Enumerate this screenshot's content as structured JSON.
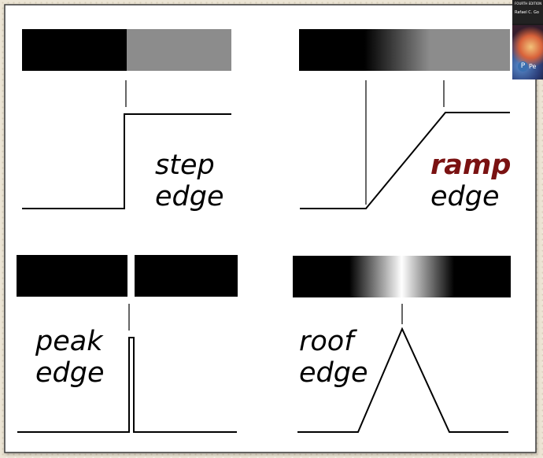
{
  "panels": {
    "step": {
      "label_line1": "step",
      "label_line2": "edge"
    },
    "ramp": {
      "label_line1": "ramp",
      "label_line2": "edge"
    },
    "peak": {
      "label_line1": "peak",
      "label_line2": "edge"
    },
    "roof": {
      "label_line1": "roof",
      "label_line2": "edge"
    }
  },
  "book_thumbnail": {
    "edition": "FOURTH EDITION",
    "author": "Rafael C. Go",
    "logo_letter": "P",
    "brand": "Pe"
  },
  "colors": {
    "background": "#ece5d5",
    "frame": "#3a3a3a",
    "panel": "#ffffff",
    "dark_band": "#000000",
    "step_gray": "#8c8c8c",
    "ramp_accent": "#7a1212"
  }
}
